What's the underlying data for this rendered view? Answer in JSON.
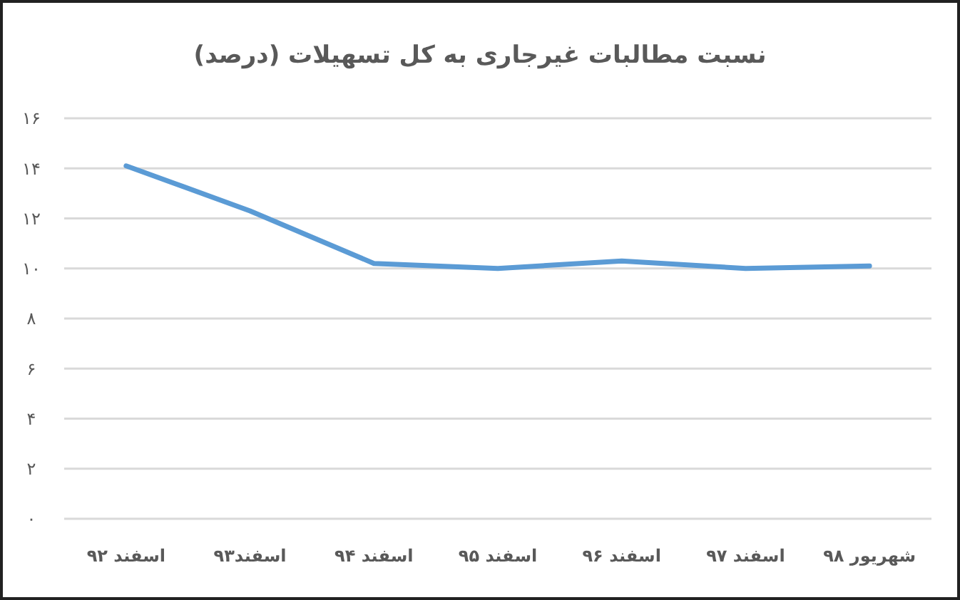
{
  "chart_data": {
    "type": "line",
    "title": "نسبت مطالبات غیرجاری به کل تسهیلات (درصد)",
    "categories": [
      "اسفند ۹۲",
      "اسفند۹۳",
      "اسفند ۹۴",
      "اسفند ۹۵",
      "اسفند ۹۶",
      "اسفند ۹۷",
      "شهریور ۹۸"
    ],
    "series": [
      {
        "color": "#5b9bd5",
        "values": [
          14.1,
          12.3,
          10.2,
          10.0,
          10.3,
          10.0,
          10.1
        ]
      }
    ],
    "ylim": [
      0,
      16
    ],
    "yticks": [
      {
        "value": 0,
        "label": "٠"
      },
      {
        "value": 2,
        "label": "۲"
      },
      {
        "value": 4,
        "label": "۴"
      },
      {
        "value": 6,
        "label": "۶"
      },
      {
        "value": 8,
        "label": "۸"
      },
      {
        "value": 10,
        "label": "۱۰"
      },
      {
        "value": 12,
        "label": "۱۲"
      },
      {
        "value": 14,
        "label": "۱۴"
      },
      {
        "value": 16,
        "label": "۱۶"
      }
    ],
    "grid": "y",
    "marker": "none",
    "line_style": "solid"
  }
}
